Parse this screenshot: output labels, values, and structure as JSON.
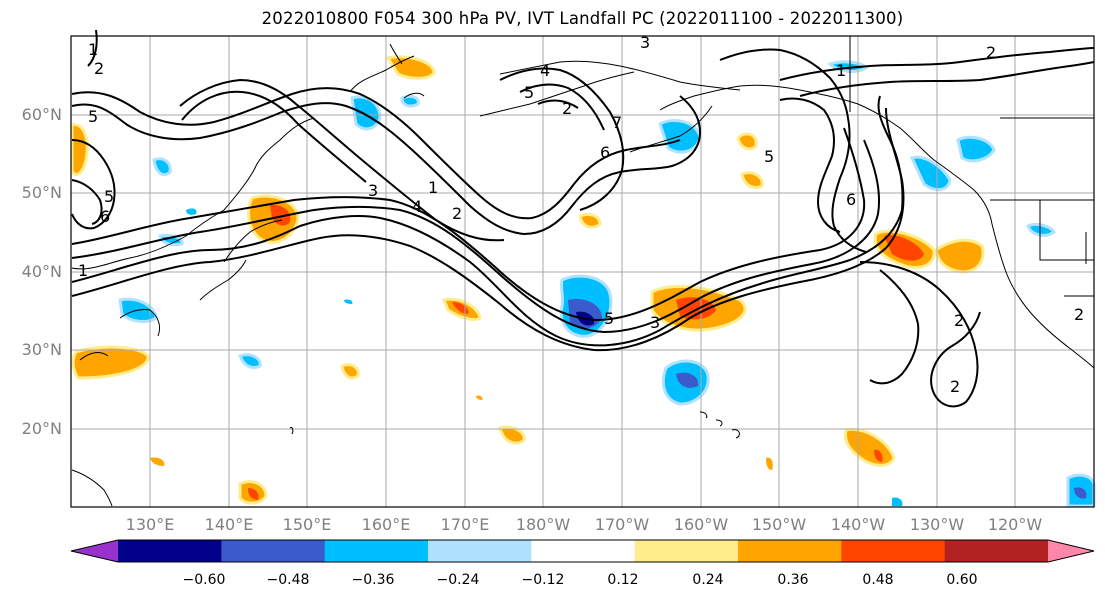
{
  "title": "2022010800 F054 300 hPa PV, IVT Landfall PC (2022011100 - 2022011300)",
  "lat_labels": [
    "60°N",
    "50°N",
    "40°N",
    "30°N",
    "20°N"
  ],
  "lon_labels": [
    "130°E",
    "140°E",
    "150°E",
    "160°E",
    "170°E",
    "180°W",
    "170°W",
    "160°W",
    "150°W",
    "140°W",
    "130°W",
    "120°W"
  ],
  "colorbar": {
    "ticks": [
      "−0.60",
      "−0.48",
      "−0.36",
      "−0.24",
      "−0.12",
      "0.12",
      "0.24",
      "0.36",
      "0.48",
      "0.60"
    ],
    "colors": [
      "#9932cc",
      "#00008b",
      "#3a5bcc",
      "#00bfff",
      "#b0e2ff",
      "#ffffff",
      "#ffec8b",
      "#ffa500",
      "#ff4500",
      "#b22222",
      "#ff88aa"
    ]
  },
  "contour_labels": [
    "1",
    "2",
    "1",
    "2",
    "3",
    "4",
    "5",
    "6",
    "7",
    "5",
    "6",
    "3",
    "5",
    "2",
    "2",
    "1",
    "2",
    "5",
    "6",
    "1",
    "2",
    "3",
    "4",
    "5",
    "2"
  ]
}
